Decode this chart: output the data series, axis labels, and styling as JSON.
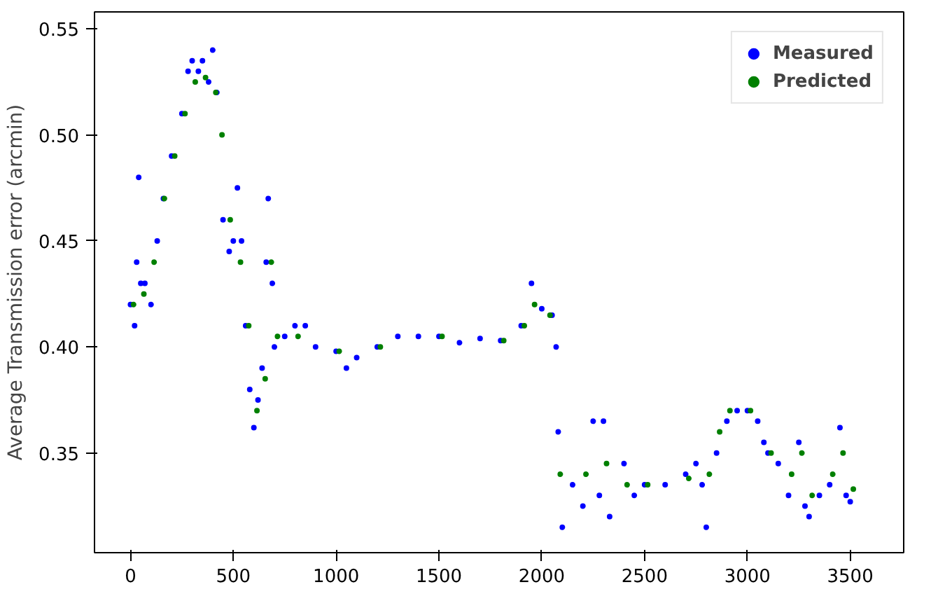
{
  "chart_data": {
    "type": "scatter",
    "ylabel": "Average Transmission error (arcmin)",
    "xlim": [
      -175,
      3760
    ],
    "ylim": [
      0.303,
      0.558
    ],
    "xticks": [
      0,
      500,
      1000,
      1500,
      2000,
      2500,
      3000,
      3500
    ],
    "yticks": [
      {
        "value": 0.35,
        "label": "0.35"
      },
      {
        "value": 0.4,
        "label": "0.40"
      },
      {
        "value": 0.45,
        "label": "0.45"
      },
      {
        "value": 0.5,
        "label": "0.50"
      },
      {
        "value": 0.55,
        "label": "0.55"
      }
    ],
    "grid": false,
    "legend": "top right",
    "marker": "circle",
    "series": [
      {
        "name": "Measured",
        "color": "#0000ff",
        "x": [
          0,
          20,
          30,
          40,
          50,
          70,
          100,
          130,
          160,
          200,
          250,
          280,
          300,
          330,
          350,
          380,
          400,
          420,
          450,
          480,
          500,
          520,
          540,
          560,
          580,
          600,
          620,
          640,
          660,
          670,
          690,
          700,
          750,
          800,
          850,
          900,
          1000,
          1050,
          1100,
          1200,
          1300,
          1400,
          1500,
          1600,
          1700,
          1800,
          1900,
          1950,
          2000,
          2050,
          2070,
          2080,
          2100,
          2150,
          2200,
          2250,
          2280,
          2300,
          2330,
          2400,
          2450,
          2500,
          2600,
          2700,
          2750,
          2780,
          2800,
          2850,
          2900,
          2950,
          3000,
          3050,
          3080,
          3100,
          3150,
          3200,
          3250,
          3280,
          3300,
          3350,
          3400,
          3450,
          3480,
          3500
        ],
        "values": [
          0.42,
          0.41,
          0.44,
          0.48,
          0.43,
          0.43,
          0.42,
          0.45,
          0.47,
          0.49,
          0.51,
          0.53,
          0.535,
          0.53,
          0.535,
          0.525,
          0.54,
          0.52,
          0.46,
          0.445,
          0.45,
          0.475,
          0.45,
          0.41,
          0.38,
          0.362,
          0.375,
          0.39,
          0.44,
          0.47,
          0.43,
          0.4,
          0.405,
          0.41,
          0.41,
          0.4,
          0.398,
          0.39,
          0.395,
          0.4,
          0.405,
          0.405,
          0.405,
          0.402,
          0.404,
          0.403,
          0.41,
          0.43,
          0.418,
          0.415,
          0.4,
          0.36,
          0.315,
          0.335,
          0.325,
          0.365,
          0.33,
          0.365,
          0.32,
          0.345,
          0.33,
          0.335,
          0.335,
          0.34,
          0.345,
          0.335,
          0.315,
          0.35,
          0.365,
          0.37,
          0.37,
          0.365,
          0.355,
          0.35,
          0.345,
          0.33,
          0.355,
          0.325,
          0.32,
          0.33,
          0.335,
          0.362,
          0.33,
          0.327
        ]
      },
      {
        "name": "Predicted",
        "color": "#008000",
        "x": [
          15,
          65,
          115,
          165,
          215,
          265,
          315,
          365,
          415,
          445,
          485,
          535,
          575,
          615,
          655,
          685,
          715,
          815,
          1015,
          1215,
          1515,
          1815,
          1915,
          1965,
          2040,
          2090,
          2215,
          2315,
          2415,
          2515,
          2715,
          2815,
          2865,
          2915,
          3015,
          3115,
          3215,
          3265,
          3315,
          3415,
          3465,
          3515
        ],
        "values": [
          0.42,
          0.425,
          0.44,
          0.47,
          0.49,
          0.51,
          0.525,
          0.527,
          0.52,
          0.5,
          0.46,
          0.44,
          0.41,
          0.37,
          0.385,
          0.44,
          0.405,
          0.405,
          0.398,
          0.4,
          0.405,
          0.403,
          0.41,
          0.42,
          0.415,
          0.34,
          0.34,
          0.345,
          0.335,
          0.335,
          0.338,
          0.34,
          0.36,
          0.37,
          0.37,
          0.35,
          0.34,
          0.35,
          0.33,
          0.34,
          0.35,
          0.333
        ]
      }
    ]
  }
}
